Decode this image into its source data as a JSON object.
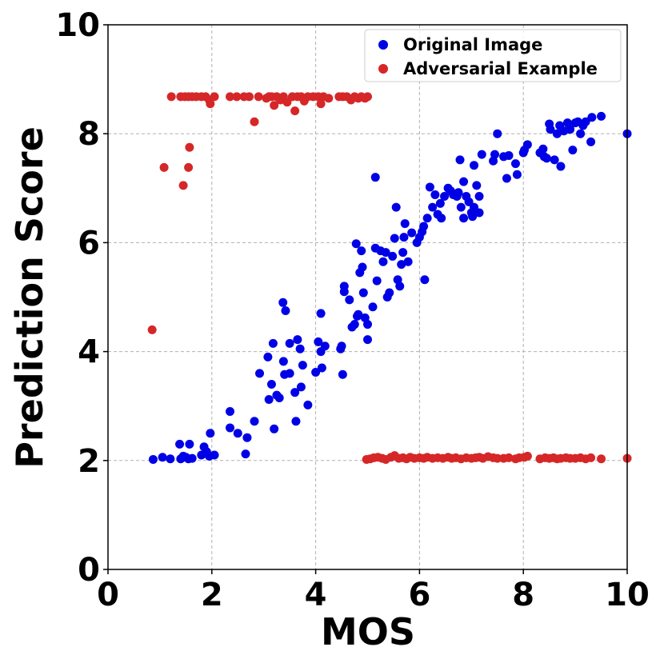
{
  "chart_data": {
    "type": "scatter",
    "title": "",
    "xlabel": "MOS",
    "ylabel": "Prediction Score",
    "xlim": [
      0,
      10
    ],
    "ylim": [
      0,
      10
    ],
    "xticks": [
      "0",
      "2",
      "4",
      "6",
      "8",
      "10"
    ],
    "yticks": [
      "0",
      "2",
      "4",
      "6",
      "8",
      "10"
    ],
    "grid": true,
    "legend_position": "top-right",
    "series": [
      {
        "name": "Original Image",
        "color": "#0000e6",
        "points": [
          [
            0.87,
            2.02
          ],
          [
            1.05,
            2.06
          ],
          [
            1.2,
            2.03
          ],
          [
            1.38,
            2.3
          ],
          [
            1.4,
            2.03
          ],
          [
            1.45,
            2.08
          ],
          [
            1.5,
            2.06
          ],
          [
            1.55,
            2.03
          ],
          [
            1.57,
            2.3
          ],
          [
            1.62,
            2.04
          ],
          [
            1.8,
            2.1
          ],
          [
            1.85,
            2.25
          ],
          [
            1.9,
            2.16
          ],
          [
            1.95,
            2.08
          ],
          [
            1.97,
            2.5
          ],
          [
            2.05,
            2.1
          ],
          [
            2.35,
            2.9
          ],
          [
            2.35,
            2.6
          ],
          [
            2.5,
            2.5
          ],
          [
            2.65,
            2.12
          ],
          [
            2.68,
            2.42
          ],
          [
            2.82,
            2.72
          ],
          [
            2.92,
            3.6
          ],
          [
            3.08,
            3.9
          ],
          [
            3.1,
            3.12
          ],
          [
            3.15,
            3.4
          ],
          [
            3.18,
            4.15
          ],
          [
            3.2,
            2.58
          ],
          [
            3.25,
            3.2
          ],
          [
            3.3,
            3.15
          ],
          [
            3.37,
            4.9
          ],
          [
            3.38,
            3.82
          ],
          [
            3.4,
            3.58
          ],
          [
            3.42,
            4.75
          ],
          [
            3.5,
            4.15
          ],
          [
            3.5,
            3.6
          ],
          [
            3.6,
            3.25
          ],
          [
            3.62,
            2.72
          ],
          [
            3.65,
            4.22
          ],
          [
            3.7,
            4.05
          ],
          [
            3.72,
            3.35
          ],
          [
            3.75,
            3.75
          ],
          [
            3.85,
            3.02
          ],
          [
            4.0,
            3.62
          ],
          [
            4.05,
            4.18
          ],
          [
            4.1,
            4.7
          ],
          [
            4.1,
            4.0
          ],
          [
            4.12,
            3.7
          ],
          [
            4.18,
            4.1
          ],
          [
            4.48,
            4.05
          ],
          [
            4.5,
            4.1
          ],
          [
            4.52,
            3.58
          ],
          [
            4.55,
            5.1
          ],
          [
            4.55,
            5.2
          ],
          [
            4.65,
            4.95
          ],
          [
            4.7,
            4.45
          ],
          [
            4.75,
            4.5
          ],
          [
            4.78,
            5.98
          ],
          [
            4.8,
            4.65
          ],
          [
            4.82,
            4.68
          ],
          [
            4.85,
            5.45
          ],
          [
            4.88,
            5.85
          ],
          [
            4.9,
            5.55
          ],
          [
            4.92,
            5.08
          ],
          [
            4.95,
            4.62
          ],
          [
            5.0,
            4.5
          ],
          [
            5.0,
            4.22
          ],
          [
            5.1,
            4.82
          ],
          [
            5.15,
            7.2
          ],
          [
            5.15,
            5.9
          ],
          [
            5.18,
            5.3
          ],
          [
            5.25,
            5.85
          ],
          [
            5.3,
            5.65
          ],
          [
            5.35,
            5.82
          ],
          [
            5.38,
            5.0
          ],
          [
            5.42,
            5.08
          ],
          [
            5.48,
            5.75
          ],
          [
            5.52,
            6.08
          ],
          [
            5.55,
            6.65
          ],
          [
            5.58,
            5.32
          ],
          [
            5.62,
            5.2
          ],
          [
            5.65,
            5.6
          ],
          [
            5.68,
            5.82
          ],
          [
            5.7,
            6.1
          ],
          [
            5.72,
            6.35
          ],
          [
            5.78,
            5.65
          ],
          [
            5.85,
            6.18
          ],
          [
            5.95,
            6.0
          ],
          [
            6.0,
            6.1
          ],
          [
            6.05,
            6.2
          ],
          [
            6.08,
            6.3
          ],
          [
            6.1,
            5.32
          ],
          [
            6.15,
            6.45
          ],
          [
            6.2,
            7.02
          ],
          [
            6.25,
            6.65
          ],
          [
            6.3,
            6.88
          ],
          [
            6.35,
            6.52
          ],
          [
            6.4,
            6.72
          ],
          [
            6.42,
            6.45
          ],
          [
            6.48,
            6.85
          ],
          [
            6.55,
            7.0
          ],
          [
            6.6,
            6.95
          ],
          [
            6.65,
            6.88
          ],
          [
            6.72,
            6.85
          ],
          [
            6.75,
            6.92
          ],
          [
            6.78,
            7.52
          ],
          [
            6.8,
            6.65
          ],
          [
            6.85,
            7.12
          ],
          [
            6.85,
            6.45
          ],
          [
            6.9,
            6.85
          ],
          [
            6.95,
            6.75
          ],
          [
            7.0,
            6.55
          ],
          [
            7.02,
            6.48
          ],
          [
            7.05,
            6.65
          ],
          [
            7.05,
            7.42
          ],
          [
            7.1,
            7.05
          ],
          [
            7.15,
            6.55
          ],
          [
            7.15,
            6.85
          ],
          [
            7.2,
            7.62
          ],
          [
            7.42,
            7.5
          ],
          [
            7.45,
            7.62
          ],
          [
            7.5,
            8.0
          ],
          [
            7.62,
            7.58
          ],
          [
            7.68,
            7.18
          ],
          [
            7.72,
            7.6
          ],
          [
            7.85,
            7.45
          ],
          [
            7.88,
            7.25
          ],
          [
            8.0,
            7.65
          ],
          [
            8.02,
            7.7
          ],
          [
            8.08,
            7.8
          ],
          [
            8.32,
            7.65
          ],
          [
            8.38,
            7.72
          ],
          [
            8.4,
            7.58
          ],
          [
            8.45,
            7.55
          ],
          [
            8.5,
            8.18
          ],
          [
            8.52,
            8.08
          ],
          [
            8.6,
            7.52
          ],
          [
            8.65,
            8.0
          ],
          [
            8.7,
            8.15
          ],
          [
            8.72,
            7.4
          ],
          [
            8.78,
            8.05
          ],
          [
            8.85,
            8.2
          ],
          [
            8.9,
            8.08
          ],
          [
            8.95,
            7.7
          ],
          [
            9.0,
            8.2
          ],
          [
            9.05,
            8.22
          ],
          [
            9.1,
            8.0
          ],
          [
            9.15,
            8.15
          ],
          [
            9.2,
            8.22
          ],
          [
            9.3,
            7.85
          ],
          [
            9.32,
            8.3
          ],
          [
            9.5,
            8.32
          ],
          [
            10.0,
            8.0
          ]
        ]
      },
      {
        "name": "Adversarial Example",
        "color": "#d62728",
        "points": [
          [
            0.85,
            4.4
          ],
          [
            1.08,
            7.38
          ],
          [
            1.45,
            7.05
          ],
          [
            1.55,
            7.38
          ],
          [
            1.57,
            7.75
          ],
          [
            1.22,
            8.68
          ],
          [
            1.4,
            8.68
          ],
          [
            1.48,
            8.68
          ],
          [
            1.55,
            8.68
          ],
          [
            1.62,
            8.68
          ],
          [
            1.7,
            8.68
          ],
          [
            1.8,
            8.68
          ],
          [
            1.88,
            8.68
          ],
          [
            1.95,
            8.62
          ],
          [
            1.97,
            8.55
          ],
          [
            2.05,
            8.68
          ],
          [
            2.35,
            8.68
          ],
          [
            2.48,
            8.68
          ],
          [
            2.62,
            8.68
          ],
          [
            2.72,
            8.68
          ],
          [
            2.82,
            8.22
          ],
          [
            2.9,
            8.68
          ],
          [
            3.05,
            8.65
          ],
          [
            3.1,
            8.68
          ],
          [
            3.15,
            8.68
          ],
          [
            3.2,
            8.52
          ],
          [
            3.25,
            8.68
          ],
          [
            3.32,
            8.62
          ],
          [
            3.38,
            8.68
          ],
          [
            3.45,
            8.58
          ],
          [
            3.55,
            8.68
          ],
          [
            3.6,
            8.42
          ],
          [
            3.65,
            8.68
          ],
          [
            3.72,
            8.68
          ],
          [
            3.78,
            8.6
          ],
          [
            3.85,
            8.68
          ],
          [
            3.95,
            8.68
          ],
          [
            4.05,
            8.68
          ],
          [
            4.1,
            8.55
          ],
          [
            4.15,
            8.68
          ],
          [
            4.25,
            8.65
          ],
          [
            4.45,
            8.68
          ],
          [
            4.52,
            8.68
          ],
          [
            4.6,
            8.68
          ],
          [
            4.68,
            8.62
          ],
          [
            4.75,
            8.68
          ],
          [
            4.82,
            8.65
          ],
          [
            4.88,
            8.68
          ],
          [
            4.95,
            8.65
          ],
          [
            5.0,
            8.68
          ],
          [
            4.98,
            2.02
          ],
          [
            5.05,
            2.03
          ],
          [
            5.12,
            2.05
          ],
          [
            5.2,
            2.06
          ],
          [
            5.28,
            2.04
          ],
          [
            5.35,
            2.02
          ],
          [
            5.45,
            2.06
          ],
          [
            5.52,
            2.09
          ],
          [
            5.6,
            2.04
          ],
          [
            5.68,
            2.05
          ],
          [
            5.75,
            2.03
          ],
          [
            5.82,
            2.06
          ],
          [
            5.9,
            2.04
          ],
          [
            6.0,
            2.05
          ],
          [
            6.08,
            2.04
          ],
          [
            6.15,
            2.06
          ],
          [
            6.25,
            2.04
          ],
          [
            6.35,
            2.05
          ],
          [
            6.45,
            2.04
          ],
          [
            6.55,
            2.06
          ],
          [
            6.62,
            2.04
          ],
          [
            6.7,
            2.05
          ],
          [
            6.8,
            2.03
          ],
          [
            6.9,
            2.05
          ],
          [
            7.0,
            2.04
          ],
          [
            7.08,
            2.05
          ],
          [
            7.15,
            2.06
          ],
          [
            7.22,
            2.04
          ],
          [
            7.32,
            2.07
          ],
          [
            7.42,
            2.05
          ],
          [
            7.5,
            2.04
          ],
          [
            7.62,
            2.04
          ],
          [
            7.72,
            2.05
          ],
          [
            7.85,
            2.03
          ],
          [
            7.92,
            2.05
          ],
          [
            8.02,
            2.06
          ],
          [
            8.08,
            2.08
          ],
          [
            8.32,
            2.03
          ],
          [
            8.42,
            2.05
          ],
          [
            8.5,
            2.04
          ],
          [
            8.58,
            2.05
          ],
          [
            8.65,
            2.03
          ],
          [
            8.72,
            2.04
          ],
          [
            8.82,
            2.05
          ],
          [
            8.9,
            2.04
          ],
          [
            9.0,
            2.04
          ],
          [
            9.1,
            2.05
          ],
          [
            9.2,
            2.03
          ],
          [
            9.3,
            2.05
          ],
          [
            9.5,
            2.03
          ],
          [
            10.0,
            2.04
          ]
        ]
      }
    ]
  }
}
